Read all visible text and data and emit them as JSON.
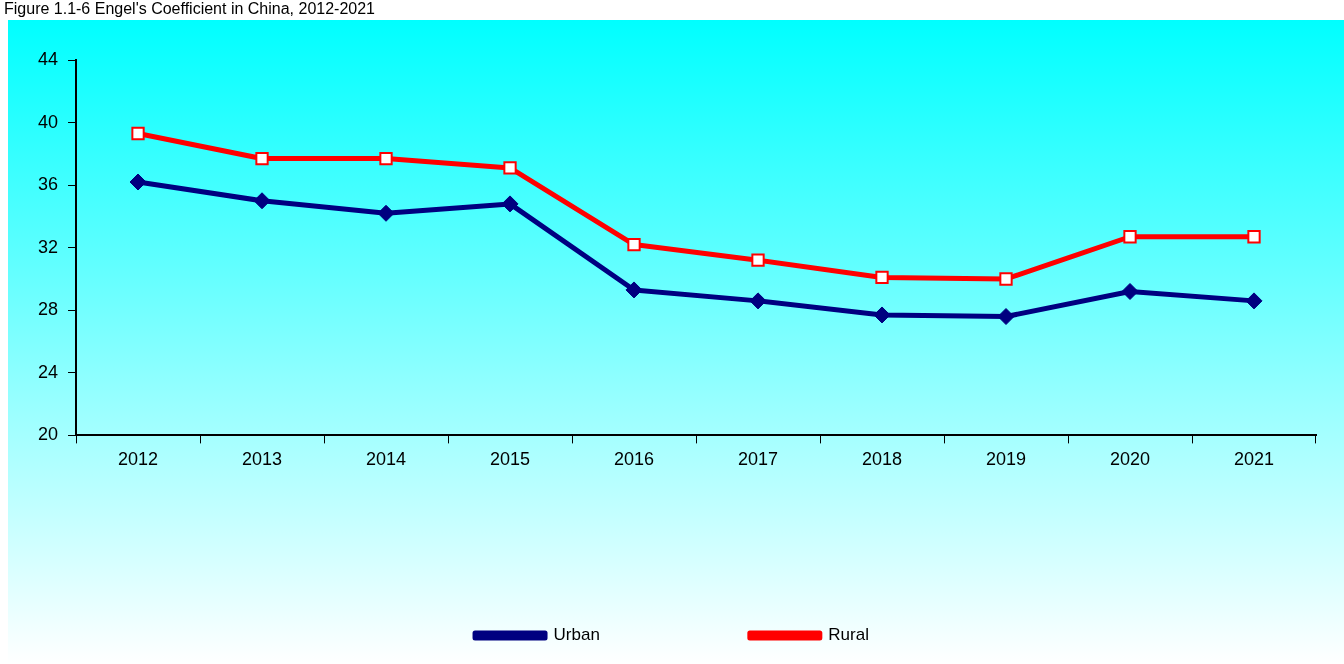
{
  "chart_data": {
    "type": "line",
    "title": "Figure 1.1-6 Engel's Coefficient in China, 2012-2021",
    "categories": [
      "2012",
      "2013",
      "2014",
      "2015",
      "2016",
      "2017",
      "2018",
      "2019",
      "2020",
      "2021"
    ],
    "series": [
      {
        "name": "Urban",
        "color": "#000080",
        "marker": "diamond",
        "values": [
          36.2,
          35.0,
          34.2,
          34.8,
          29.3,
          28.6,
          27.7,
          27.6,
          29.2,
          28.6
        ]
      },
      {
        "name": "Rural",
        "color": "#ff0000",
        "marker": "square",
        "values": [
          39.3,
          37.7,
          37.7,
          37.1,
          32.2,
          31.2,
          30.1,
          30.0,
          32.7,
          32.7
        ]
      }
    ],
    "ylim": [
      20,
      44
    ],
    "yticks": [
      20,
      24,
      28,
      32,
      36,
      40,
      44
    ],
    "grid": false,
    "legend": "bottom",
    "line_style": "solid"
  }
}
